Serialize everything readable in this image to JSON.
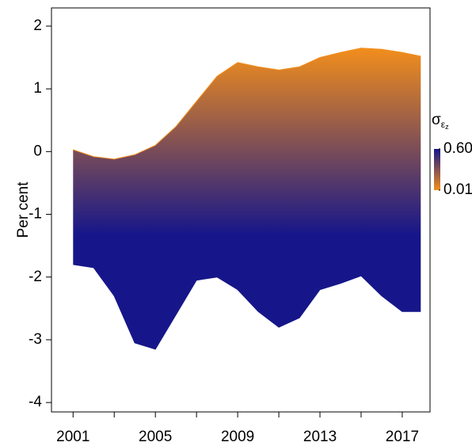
{
  "chart_data": {
    "type": "band",
    "ylabel": "Per cent",
    "x": [
      2001,
      2002,
      2003,
      2004,
      2005,
      2006,
      2007,
      2008,
      2009,
      2010,
      2011,
      2012,
      2013,
      2014,
      2015,
      2016,
      2017,
      2017.9
    ],
    "series": [
      {
        "values": [
          0.03,
          -0.08,
          -0.12,
          -0.05,
          0.1,
          0.4,
          0.8,
          1.2,
          1.42,
          1.35,
          1.3,
          1.35,
          1.5,
          1.58,
          1.65,
          1.63,
          1.58,
          1.52
        ],
        "color": "#f28e1c"
      },
      {
        "values": [
          -1.8,
          -1.85,
          -2.3,
          -3.05,
          -3.15,
          -2.6,
          -2.05,
          -2.0,
          -2.2,
          -2.55,
          -2.8,
          -2.65,
          -2.2,
          -2.1,
          -1.98,
          -2.3,
          -2.55,
          -2.55
        ],
        "color": "#16168a"
      }
    ],
    "xlim": [
      1999.95,
      2018.35
    ],
    "ylim": [
      -4.15,
      2.29
    ],
    "xticks": [
      2001,
      2005,
      2009,
      2013,
      2017
    ],
    "xminorticks": [
      2003,
      2007,
      2011,
      2015
    ],
    "yticks": [
      -4,
      -3,
      -2,
      -1,
      0,
      1,
      2
    ],
    "colorbar": {
      "title": "σ",
      "title_sub": "ε",
      "title_subsub": "z",
      "clim": [
        0.01,
        0.6
      ],
      "low_color": "#f28e1c",
      "high_color": "#16168a",
      "ticks": [
        {
          "value": 0.6,
          "label": "0.60"
        },
        0.01
      ]
    }
  }
}
